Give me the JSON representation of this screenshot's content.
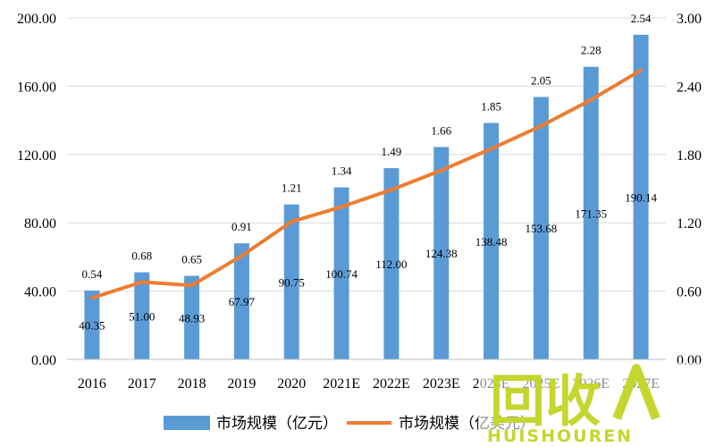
{
  "chart_data": {
    "type": "bar",
    "categories": [
      "2016",
      "2017",
      "2018",
      "2019",
      "2020",
      "2021E",
      "2022E",
      "2023E",
      "2024E",
      "2025E",
      "2026E",
      "2027E"
    ],
    "series": [
      {
        "name": "市场规模（亿元）",
        "type": "bar",
        "axis": "left",
        "color": "#5b9bd5",
        "values": [
          40.35,
          51.0,
          48.93,
          67.97,
          90.75,
          100.74,
          112.0,
          124.38,
          138.48,
          153.68,
          171.35,
          190.14
        ]
      },
      {
        "name": "市场规模（亿美元）",
        "type": "line",
        "axis": "right",
        "color": "#ed7d31",
        "values": [
          0.54,
          0.68,
          0.65,
          0.91,
          1.21,
          1.34,
          1.49,
          1.66,
          1.85,
          2.05,
          2.28,
          2.54
        ]
      }
    ],
    "y_left": {
      "ylim": [
        0,
        200
      ],
      "ticks": [
        "0.00",
        "40.00",
        "80.00",
        "120.00",
        "160.00",
        "200.00"
      ]
    },
    "y_right": {
      "ylim": [
        0,
        3
      ],
      "ticks": [
        "0.00",
        "0.60",
        "1.20",
        "1.80",
        "2.40",
        "3.00"
      ]
    },
    "grid": true,
    "legend": "bottom"
  },
  "watermark": {
    "text_cn": "回收",
    "text_en": "HUISHOUREN",
    "color": "#c5d62f"
  }
}
